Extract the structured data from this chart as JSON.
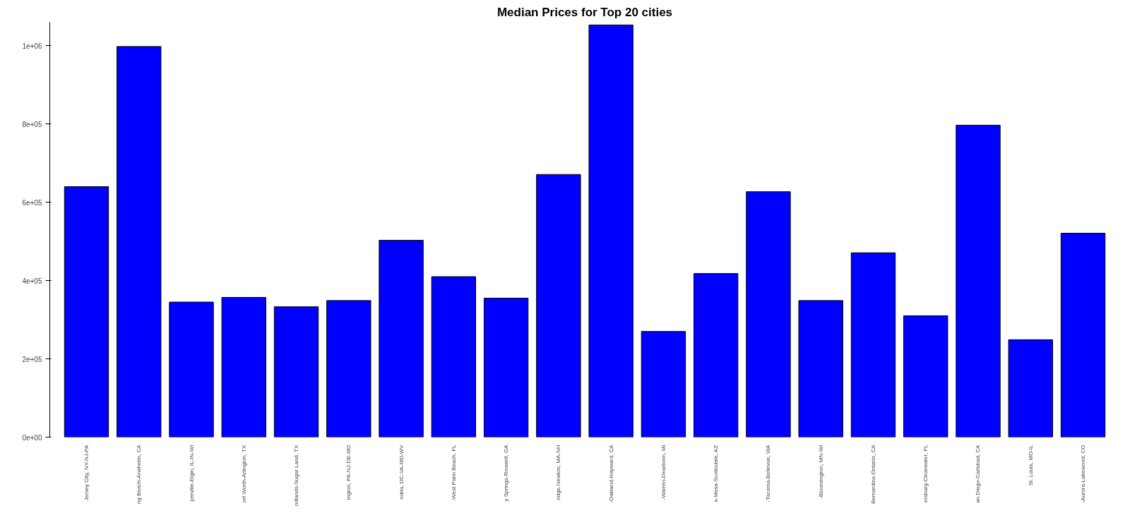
{
  "chart_data": {
    "type": "bar",
    "title": "Median Prices for Top 20 cities",
    "categories": [
      "Jersey City, NY-NJ-PA",
      "ng Beach-Anaheim, CA",
      "perville-Elgin, IL-IN-WI",
      "ort Worth-Arlington, TX",
      "odlands-Sugar Land, TX",
      "ington, PA-NJ-DE-MD",
      "ndria, DC-VA-MD-WV",
      "-West Palm Beach, FL",
      "y Springs-Roswell, GA",
      "ridge-Newton, MA-NH",
      "-Oakland-Hayward, CA",
      "-Warren-Dearborn, MI",
      "x-Mesa-Scottsdale, AZ",
      "-Tacoma-Bellevue, WA",
      "-Bloomington, MN-WI",
      "Bernardino-Ontario, CA",
      "ersburg-Clearwater, FL",
      "an Diego-Carlsbad, CA",
      "St. Louis, MO-IL",
      "-Aurora-Lakewood, CO"
    ],
    "values": [
      640000,
      998000,
      345000,
      357000,
      333000,
      349000,
      503000,
      410000,
      355000,
      671000,
      1053000,
      270000,
      418000,
      627000,
      349000,
      471000,
      310000,
      797000,
      249000,
      521000
    ],
    "color": "#0000ff",
    "ylim": [
      0,
      1060000
    ],
    "yticks": [
      {
        "value": 0,
        "label": "0e+00"
      },
      {
        "value": 200000,
        "label": "2e+05"
      },
      {
        "value": 400000,
        "label": "4e+05"
      },
      {
        "value": 600000,
        "label": "6e+05"
      },
      {
        "value": 800000,
        "label": "8e+05"
      },
      {
        "value": 1000000,
        "label": "1e+06"
      }
    ],
    "grid": false
  }
}
